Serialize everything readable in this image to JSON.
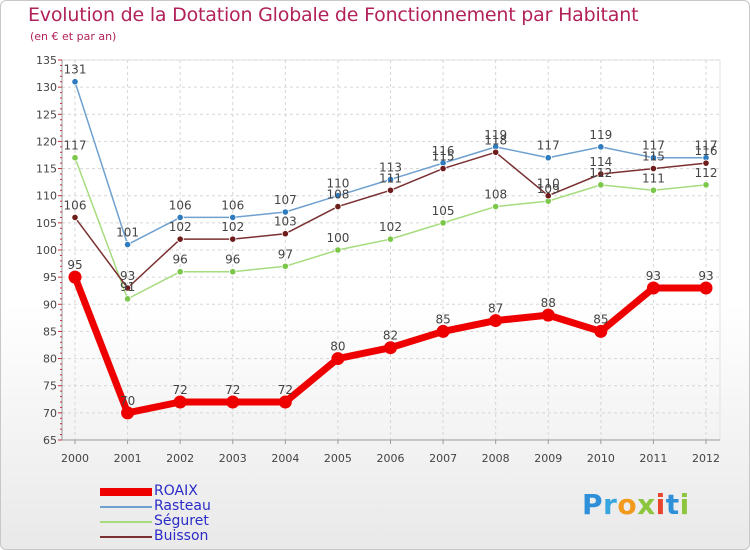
{
  "header": {
    "title": "Evolution de la Dotation Globale de Fonctionnement par Habitant",
    "subtitle": "(en € et par an)"
  },
  "logo": {
    "text": "Proxiti",
    "letters": [
      {
        "ch": "P",
        "color": "#2f8fd8"
      },
      {
        "ch": "r",
        "color": "#3aa6e0"
      },
      {
        "ch": "o",
        "color": "#f29a1d"
      },
      {
        "ch": "x",
        "color": "#8cc63f"
      },
      {
        "ch": "i",
        "color": "#e8442e"
      },
      {
        "ch": "t",
        "color": "#2f8fd8"
      },
      {
        "ch": "i",
        "color": "#8cc63f"
      }
    ]
  },
  "chart_data": {
    "type": "line",
    "title": "Evolution de la Dotation Globale de Fonctionnement par Habitant",
    "subtitle": "(en € et par an)",
    "xlabel": "",
    "ylabel": "",
    "ylim": [
      65,
      135
    ],
    "yticks": [
      65,
      70,
      75,
      80,
      85,
      90,
      95,
      100,
      105,
      110,
      115,
      120,
      125,
      130,
      135
    ],
    "categories": [
      "2000",
      "2001",
      "2002",
      "2003",
      "2004",
      "2005",
      "2006",
      "2007",
      "2008",
      "2009",
      "2010",
      "2011",
      "2012"
    ],
    "grid": true,
    "legend_position": "bottom-left",
    "series": [
      {
        "name": "ROAIX",
        "color": "#ee0000",
        "values": [
          95,
          70,
          72,
          72,
          72,
          80,
          82,
          85,
          87,
          88,
          85,
          93,
          93
        ],
        "labels": [
          "95",
          "70",
          "72",
          "72",
          "72",
          "80",
          "82",
          "85",
          "87",
          "88",
          "85",
          "93",
          "93"
        ]
      },
      {
        "name": "Rasteau",
        "color": "#6fa0cf",
        "marker": "#2e7bbf",
        "values": [
          131,
          101,
          106,
          106,
          107,
          110,
          113,
          116,
          119,
          117,
          119,
          117,
          117
        ],
        "labels": [
          "131",
          "101",
          "106",
          "106",
          "107",
          "110",
          "113",
          "116",
          "119",
          "117",
          "119",
          "117",
          "117"
        ]
      },
      {
        "name": "Séguret",
        "color": "#a6dc7e",
        "marker": "#7bc74a",
        "values": [
          117,
          91,
          96,
          96,
          97,
          100,
          102,
          105,
          108,
          109,
          112,
          111,
          112
        ],
        "labels": [
          "117",
          "91",
          "96",
          "96",
          "97",
          "100",
          "102",
          "105",
          "108",
          "109",
          "112",
          "111",
          "112"
        ]
      },
      {
        "name": "Buisson",
        "color": "#7a3030",
        "marker": "#6e1c1c",
        "values": [
          106,
          93,
          102,
          102,
          103,
          108,
          111,
          115,
          118,
          110,
          114,
          115,
          116
        ],
        "labels": [
          "106",
          "93",
          "102",
          "102",
          "103",
          "108",
          "111",
          "115",
          "118",
          "110",
          "114",
          "115",
          "116"
        ]
      }
    ]
  }
}
